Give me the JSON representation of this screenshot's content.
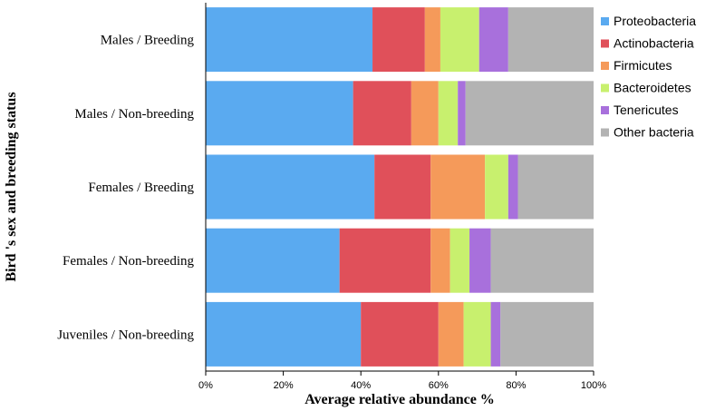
{
  "chart_data": {
    "type": "bar",
    "orientation": "horizontal",
    "stacked": true,
    "title": "",
    "xlabel": "Average relative abundance %",
    "ylabel": "Bird 's sex and breeding status",
    "xlim": [
      0,
      100
    ],
    "x_ticks": [
      "0%",
      "20%",
      "40%",
      "60%",
      "80%",
      "100%"
    ],
    "x_tick_values": [
      0,
      20,
      40,
      60,
      80,
      100
    ],
    "grid": false,
    "legend_position": "right",
    "categories": [
      "Males / Breeding",
      "Males / Non-breeding",
      "Females / Breeding",
      "Females / Non-breeding",
      "Juveniles / Non-breeding"
    ],
    "series": [
      {
        "name": "Proteobacteria",
        "color": "#5aaaf0",
        "values": [
          43.0,
          38.0,
          43.5,
          34.5,
          40.0
        ]
      },
      {
        "name": "Actinobacteria",
        "color": "#e0505a",
        "values": [
          13.5,
          15.0,
          14.5,
          23.5,
          20.0
        ]
      },
      {
        "name": "Firmicutes",
        "color": "#f59a5a",
        "values": [
          4.0,
          7.0,
          14.0,
          5.0,
          6.5
        ]
      },
      {
        "name": "Bacteroidetes",
        "color": "#c8f06e",
        "values": [
          10.0,
          5.0,
          6.0,
          5.0,
          7.0
        ]
      },
      {
        "name": "Tenericutes",
        "color": "#a870dc",
        "values": [
          7.5,
          2.0,
          2.5,
          5.5,
          2.5
        ]
      },
      {
        "name": "Other bacteria",
        "color": "#b3b3b3",
        "values": [
          22.0,
          33.0,
          19.5,
          26.5,
          24.0
        ]
      }
    ]
  }
}
